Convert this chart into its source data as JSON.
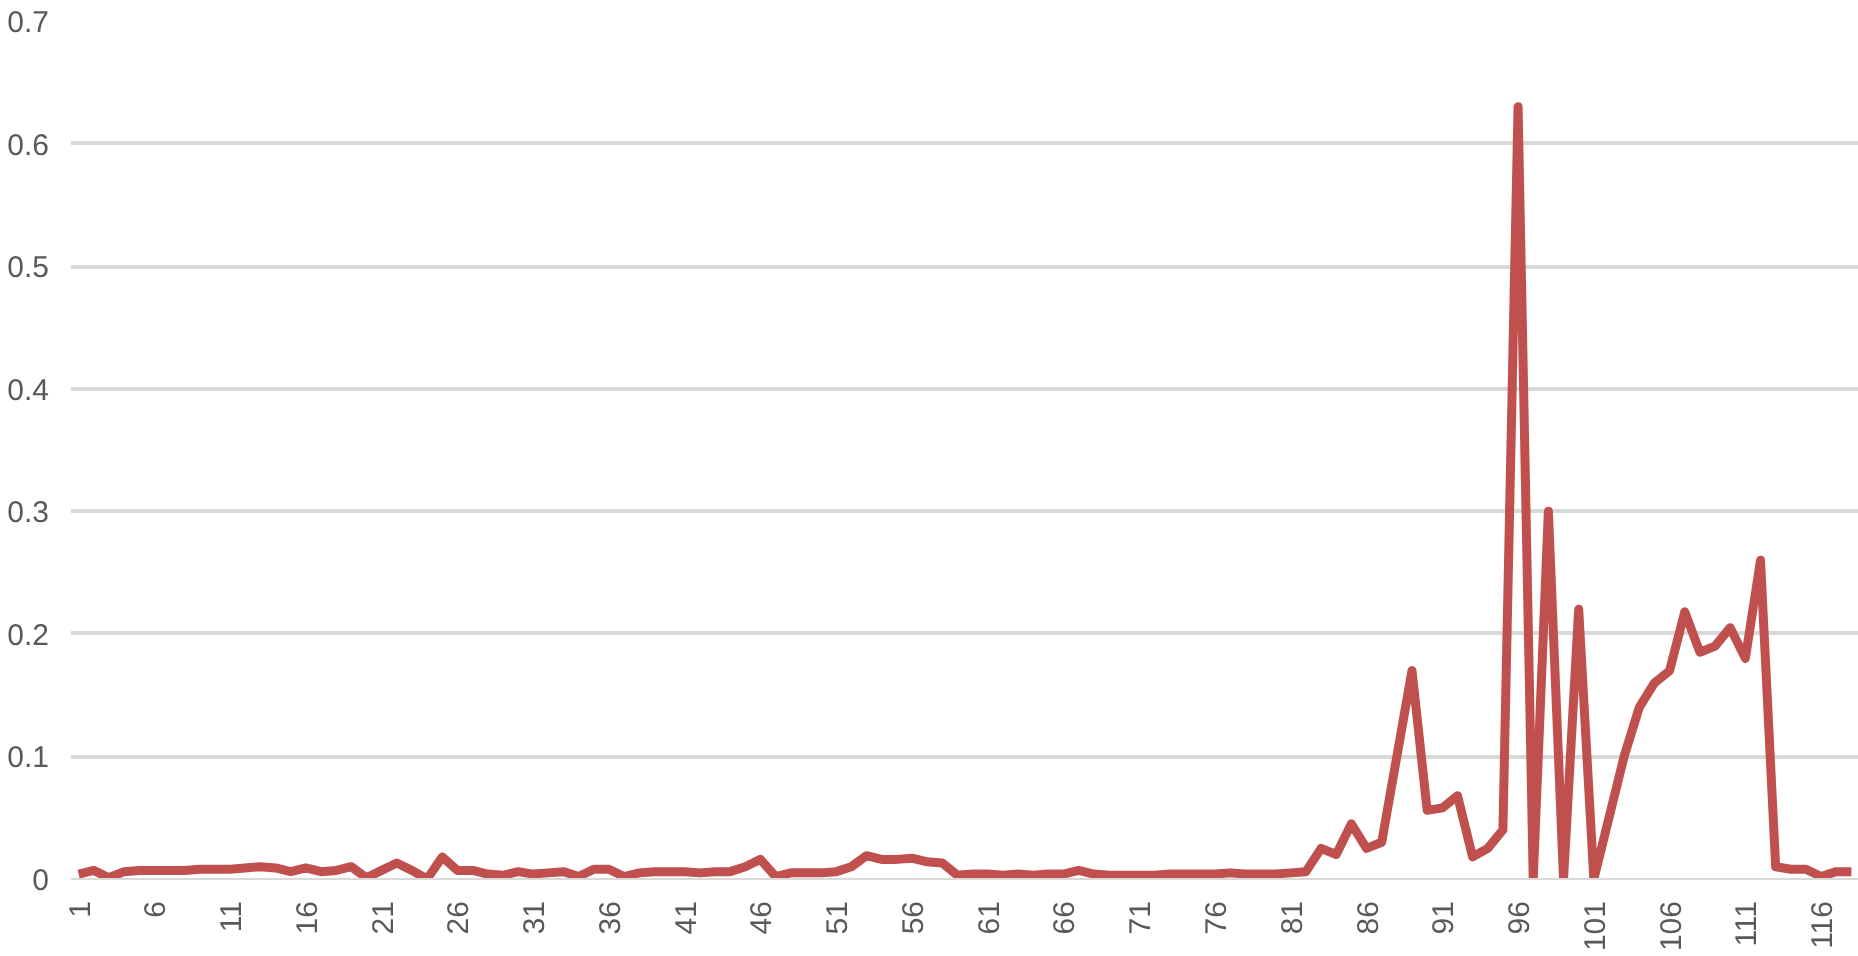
{
  "chart_data": {
    "type": "line",
    "categories": [
      "1",
      null,
      null,
      null,
      null,
      "6",
      null,
      null,
      null,
      null,
      "11",
      null,
      null,
      null,
      null,
      "16",
      null,
      null,
      null,
      null,
      "21",
      null,
      null,
      null,
      null,
      "26",
      null,
      null,
      null,
      null,
      "31",
      null,
      null,
      null,
      null,
      "36",
      null,
      null,
      null,
      null,
      "41",
      null,
      null,
      null,
      null,
      "46",
      null,
      null,
      null,
      null,
      "51",
      null,
      null,
      null,
      null,
      "56",
      null,
      null,
      null,
      null,
      "61",
      null,
      null,
      null,
      null,
      "66",
      null,
      null,
      null,
      null,
      "71",
      null,
      null,
      null,
      null,
      "76",
      null,
      null,
      null,
      null,
      "81",
      null,
      null,
      null,
      null,
      "86",
      null,
      null,
      null,
      null,
      "91",
      null,
      null,
      null,
      null,
      "96",
      null,
      null,
      null,
      null,
      "101",
      null,
      null,
      null,
      null,
      "106",
      null,
      null,
      null,
      null,
      "111",
      null,
      null,
      null,
      null,
      "116",
      null,
      null
    ],
    "series": [
      {
        "color": "#c0504d",
        "values": [
          0.004,
          0.007,
          0.001,
          0.006,
          0.007,
          0.007,
          0.007,
          0.007,
          0.008,
          0.008,
          0.008,
          0.009,
          0.01,
          0.009,
          0.006,
          0.009,
          0.006,
          0.007,
          0.01,
          0.001,
          0.007,
          0.013,
          0.007,
          0.0,
          0.018,
          0.007,
          0.007,
          0.004,
          0.003,
          0.006,
          0.004,
          0.005,
          0.006,
          0.002,
          0.008,
          0.008,
          0.002,
          0.005,
          0.006,
          0.006,
          0.006,
          0.005,
          0.006,
          0.006,
          0.01,
          0.016,
          0.002,
          0.005,
          0.005,
          0.005,
          0.006,
          0.01,
          0.019,
          0.016,
          0.016,
          0.017,
          0.014,
          0.013,
          0.003,
          0.004,
          0.004,
          0.003,
          0.004,
          0.003,
          0.004,
          0.004,
          0.007,
          0.004,
          0.003,
          0.003,
          0.003,
          0.003,
          0.004,
          0.004,
          0.004,
          0.004,
          0.005,
          0.004,
          0.004,
          0.004,
          0.005,
          0.006,
          0.025,
          0.02,
          0.045,
          0.025,
          0.03,
          0.1,
          0.17,
          0.056,
          0.058,
          0.068,
          0.018,
          0.025,
          0.04,
          0.63,
          0.0,
          0.3,
          0.0,
          0.22,
          0.0,
          0.05,
          0.1,
          0.14,
          0.16,
          0.17,
          0.218,
          0.185,
          0.19,
          0.205,
          0.18,
          0.26,
          0.01,
          0.008,
          0.008,
          0.002,
          0.006,
          0.006
        ]
      }
    ],
    "ylim": [
      0,
      0.7
    ],
    "yticks": [
      0,
      0.1,
      0.2,
      0.3,
      0.4,
      0.5,
      0.6,
      0.7
    ],
    "grid": "y",
    "marker": "none",
    "line_style": "solid"
  }
}
